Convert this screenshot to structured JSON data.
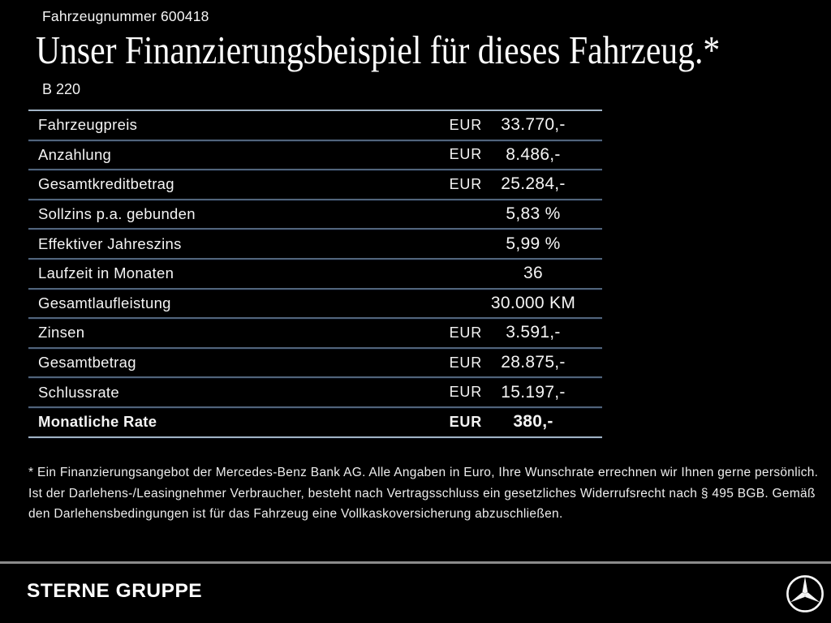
{
  "header": {
    "vehicle_number": "Fahrzeugnummer 600418",
    "title": "Unser Finanzierungsbeispiel für dieses Fahrzeug.*",
    "model": "B 220"
  },
  "financing_table": {
    "rows": [
      {
        "label": "Fahrzeugpreis",
        "currency": "EUR",
        "value": "33.770,-",
        "bold": false
      },
      {
        "label": "Anzahlung",
        "currency": "EUR",
        "value": "8.486,-",
        "bold": false
      },
      {
        "label": "Gesamtkreditbetrag",
        "currency": "EUR",
        "value": "25.284,-",
        "bold": false
      },
      {
        "label": "Sollzins p.a. gebunden",
        "currency": "",
        "value": "5,83 %",
        "bold": false
      },
      {
        "label": "Effektiver Jahreszins",
        "currency": "",
        "value": "5,99 %",
        "bold": false
      },
      {
        "label": "Laufzeit in Monaten",
        "currency": "",
        "value": "36",
        "bold": false
      },
      {
        "label": "Gesamtlaufleistung",
        "currency": "",
        "value": "30.000 KM",
        "bold": false
      },
      {
        "label": "Zinsen",
        "currency": "EUR",
        "value": "3.591,-",
        "bold": false
      },
      {
        "label": "Gesamtbetrag",
        "currency": "EUR",
        "value": "28.875,-",
        "bold": false
      },
      {
        "label": "Schlussrate",
        "currency": "EUR",
        "value": "15.197,-",
        "bold": false
      },
      {
        "label": "Monatliche Rate",
        "currency": "EUR",
        "value": "380,-",
        "bold": true
      }
    ]
  },
  "footnote": "* Ein Finanzierungsangebot der Mercedes-Benz Bank AG. Alle Angaben in Euro, Ihre Wunschrate errechnen wir Ihnen gerne persönlich. Ist der Darlehens-/Leasingnehmer Verbraucher, besteht nach Vertragsschluss ein gesetzliches Widerrufsrecht nach § 495 BGB. Gemäß den Darlehensbedingungen ist für das Fahrzeug eine Vollkaskoversicherung abzuschließen.",
  "footer": {
    "dealer_name": "STERNE GRUPPE",
    "logo": "mercedes-benz-star-icon"
  },
  "colors": {
    "background": "#000000",
    "text": "#f4f4f4",
    "table_divider": "#51647b",
    "table_edge": "#a2b4c6",
    "footer_divider": "#8b8b8b"
  }
}
